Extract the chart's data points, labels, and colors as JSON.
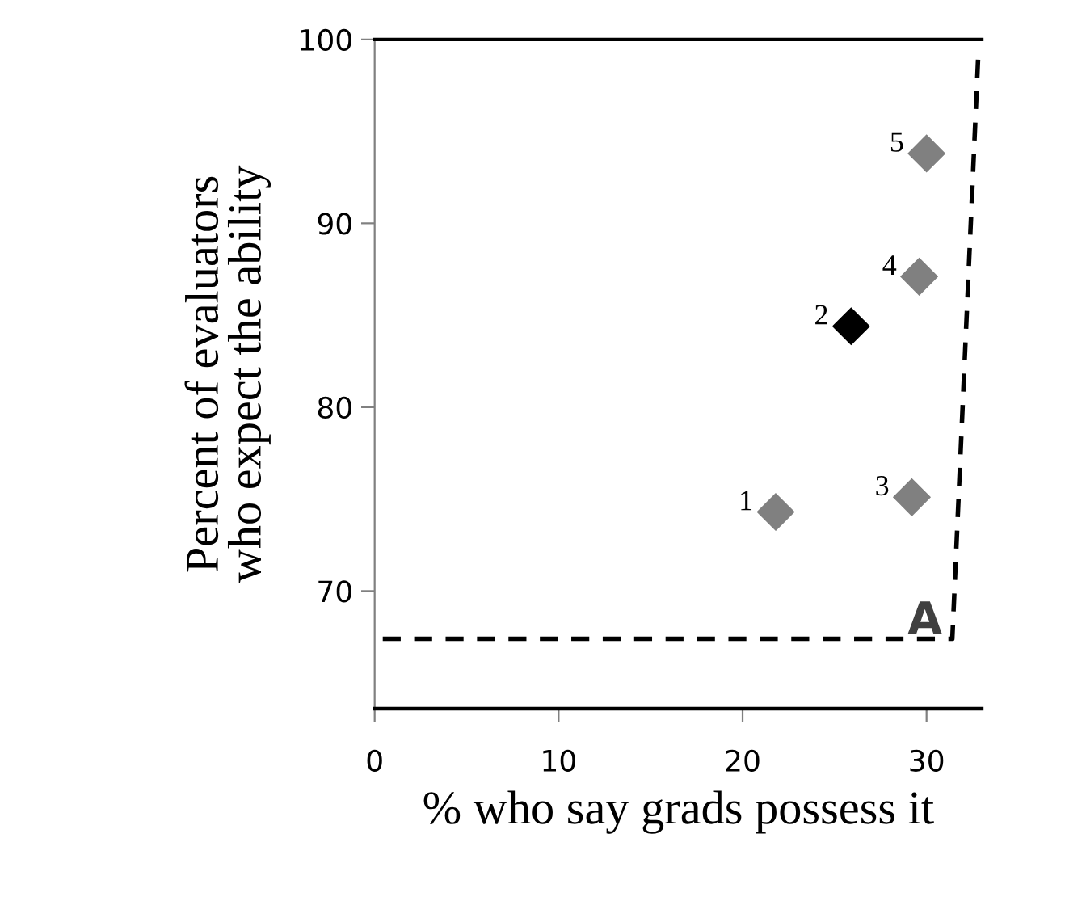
{
  "chart_data": {
    "type": "scatter",
    "xlabel": "% who say grads possess it",
    "ylabel": "Percent of evaluators\nwho expect the ability",
    "series": [
      {
        "x": [
          21.8,
          25.9,
          29.2,
          29.6,
          30.0
        ],
        "values": [
          74.3,
          84.4,
          75.1,
          87.1,
          93.8
        ],
        "colors": [
          "#808080",
          "#000000",
          "#808080",
          "#808080",
          "#808080"
        ],
        "marker": "diamond"
      },
      {
        "type": "line",
        "x": [
          0,
          31.4,
          32.8
        ],
        "values": [
          67.4,
          67.4,
          98.9
        ],
        "color": "#000000",
        "line_style": "dashed",
        "marker": "none"
      }
    ],
    "xlim": [
      0,
      33
    ],
    "ylim": [
      63.6,
      100
    ],
    "xticks": [
      0,
      10,
      20,
      30
    ],
    "yticks": [
      70,
      80,
      90,
      100
    ],
    "grid": false,
    "annotations": [
      {
        "text": "1",
        "x": 21.8,
        "y": 74.3
      },
      {
        "text": "2",
        "x": 25.9,
        "y": 84.4
      },
      {
        "text": "3",
        "x": 29.2,
        "y": 75.1
      },
      {
        "text": "4",
        "x": 29.6,
        "y": 87.1
      },
      {
        "text": "5",
        "x": 30.0,
        "y": 93.8
      },
      "A"
    ]
  }
}
